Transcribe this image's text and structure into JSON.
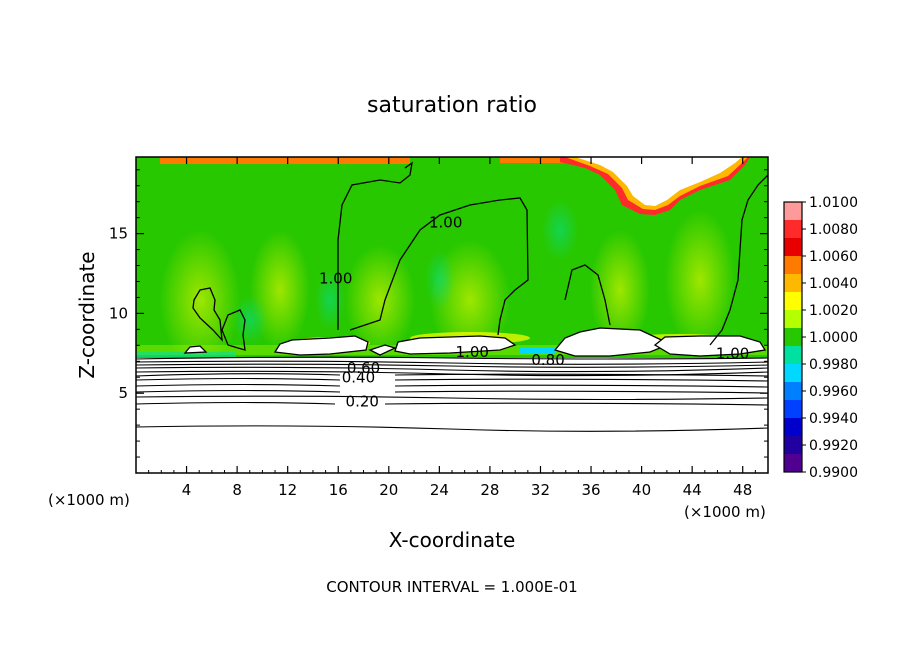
{
  "chart_data": {
    "type": "heatmap",
    "title": "saturation ratio",
    "xlabel": "X-coordinate",
    "ylabel": "Z-coordinate",
    "x_unit_left": "(×1000 m)",
    "x_unit_right": "(×1000 m)",
    "xlim": [
      0,
      50
    ],
    "ylim": [
      0,
      19.8
    ],
    "x_ticks": [
      4,
      8,
      12,
      16,
      20,
      24,
      28,
      32,
      36,
      40,
      44,
      48
    ],
    "y_ticks": [
      5,
      10,
      15
    ],
    "colorbar": {
      "min": 0.99,
      "max": 1.01,
      "labels": [
        "1.0100",
        "1.0080",
        "1.0060",
        "1.0040",
        "1.0020",
        "1.0000",
        "0.9980",
        "0.9960",
        "0.9940",
        "0.9920",
        "0.9900"
      ],
      "colors": [
        "#ff9a9a",
        "#ff2a2a",
        "#e80000",
        "#ff7a00",
        "#ffb800",
        "#ffff00",
        "#b4ff00",
        "#28c800",
        "#00e0a0",
        "#00d8ff",
        "#0080ff",
        "#0040ff",
        "#0000cc",
        "#2000a0",
        "#500090"
      ]
    },
    "contour_labels": [
      {
        "text": "1.00",
        "x": 24.5,
        "y": 15.5
      },
      {
        "text": "1.00",
        "x": 15.8,
        "y": 12.0
      },
      {
        "text": "1.00",
        "x": 26.6,
        "y": 7.4
      },
      {
        "text": "0.80",
        "x": 32.6,
        "y": 6.9
      },
      {
        "text": "1.00",
        "x": 47.2,
        "y": 7.3
      },
      {
        "text": "0.60",
        "x": 18.0,
        "y": 6.4
      },
      {
        "text": "0.40",
        "x": 17.6,
        "y": 5.8
      },
      {
        "text": "0.20",
        "x": 17.9,
        "y": 4.3
      }
    ],
    "contour_interval_text": "CONTOUR INTERVAL = 1.000E-01"
  }
}
